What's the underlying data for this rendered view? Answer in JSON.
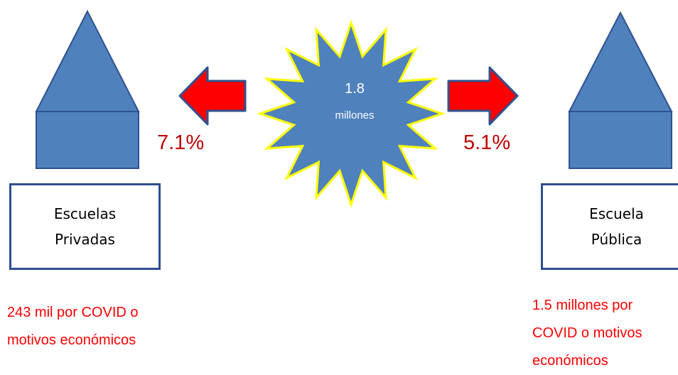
{
  "left": {
    "percentage": "7.1%",
    "box_line1": "Escuelas",
    "box_line2": "Privadas",
    "note_line1": "243 mil por COVID o",
    "note_line2": "motivos económicos"
  },
  "right": {
    "percentage": "5.1%",
    "box_line1": "Escuela",
    "box_line2": "Pública",
    "note_line1": "1.5 millones por",
    "note_line2": "COVID o motivos",
    "note_line3": "económicos"
  },
  "center": {
    "value": "1.8",
    "unit": "millones"
  },
  "colors": {
    "shape_fill": "#4f81bd",
    "shape_stroke": "#2f528f",
    "star_outline": "#ffff00",
    "arrow_fill": "#ff0000",
    "arrow_stroke": "#2f528f",
    "percentage_text": "#c00000",
    "note_text": "#ff0000"
  }
}
